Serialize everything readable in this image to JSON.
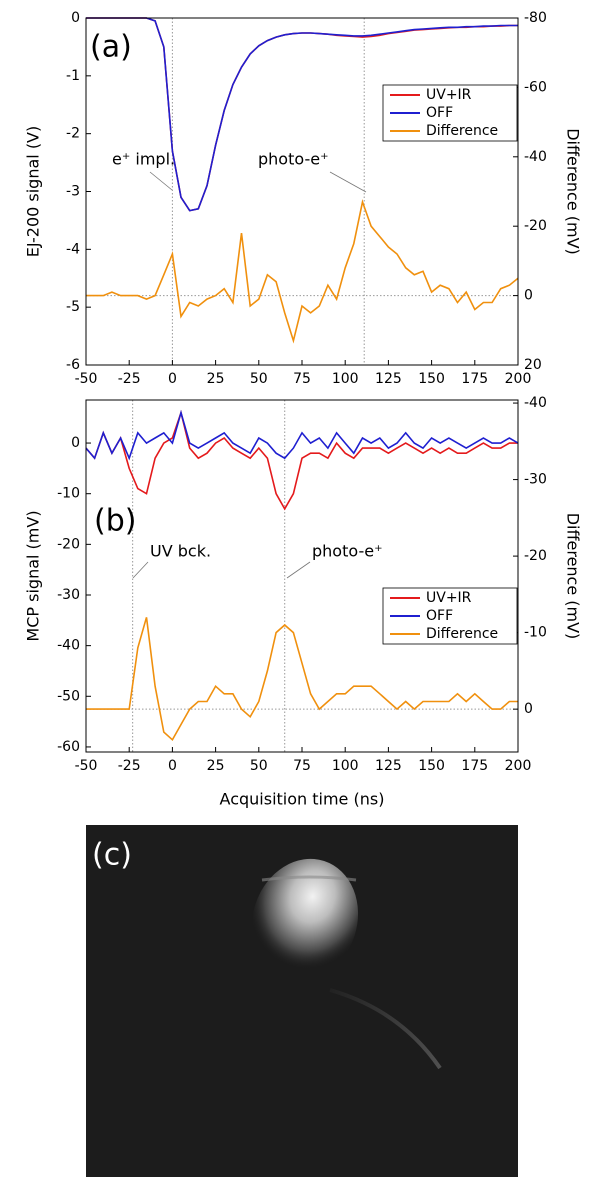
{
  "chart_data": [
    {
      "type": "line",
      "ylabel": "EJ-200 signal (V)",
      "y2label": "Difference (mV)",
      "legend": "upper right",
      "annotations": [
        {
          "text": "(a)"
        },
        {
          "text": "e⁺ impl."
        },
        {
          "text": "photo-e⁺"
        }
      ],
      "markers_x": [
        0,
        111
      ],
      "hline_y2": 0,
      "xlim": [
        -50,
        200
      ],
      "xticks": [
        -50,
        -25,
        0,
        25,
        50,
        75,
        100,
        125,
        150,
        175,
        200
      ],
      "ylim": [
        -6,
        0
      ],
      "yticks": [
        -6,
        -5,
        -4,
        -3,
        -2,
        -1,
        0
      ],
      "y2lim": [
        20,
        -80
      ],
      "y2ticks": [
        20,
        0,
        -20,
        -40,
        -60,
        -80
      ],
      "x": [
        -50,
        -45,
        -40,
        -35,
        -30,
        -25,
        -20,
        -15,
        -10,
        -5,
        0,
        5,
        10,
        15,
        20,
        25,
        30,
        35,
        40,
        45,
        50,
        55,
        60,
        65,
        70,
        75,
        80,
        85,
        90,
        95,
        100,
        105,
        110,
        115,
        120,
        125,
        130,
        135,
        140,
        145,
        150,
        155,
        160,
        165,
        170,
        175,
        180,
        185,
        190,
        195,
        200
      ],
      "series": [
        {
          "name": "UV+IR",
          "color": "#e41a1c",
          "values": [
            0,
            0,
            0,
            0,
            0,
            0,
            0,
            0,
            -0.05,
            -0.5,
            -2.3,
            -3.1,
            -3.33,
            -3.3,
            -2.9,
            -2.2,
            -1.6,
            -1.15,
            -0.85,
            -0.62,
            -0.48,
            -0.39,
            -0.33,
            -0.29,
            -0.27,
            -0.26,
            -0.26,
            -0.27,
            -0.28,
            -0.3,
            -0.31,
            -0.32,
            -0.33,
            -0.32,
            -0.3,
            -0.27,
            -0.25,
            -0.23,
            -0.21,
            -0.2,
            -0.19,
            -0.18,
            -0.17,
            -0.16,
            -0.16,
            -0.15,
            -0.15,
            -0.14,
            -0.14,
            -0.13,
            -0.13
          ]
        },
        {
          "name": "OFF",
          "color": "#1f1fd0",
          "values": [
            0,
            0,
            0,
            0,
            0,
            0,
            0,
            0,
            -0.05,
            -0.5,
            -2.3,
            -3.1,
            -3.33,
            -3.3,
            -2.9,
            -2.2,
            -1.6,
            -1.15,
            -0.85,
            -0.62,
            -0.48,
            -0.39,
            -0.33,
            -0.29,
            -0.27,
            -0.26,
            -0.26,
            -0.27,
            -0.28,
            -0.29,
            -0.3,
            -0.31,
            -0.31,
            -0.3,
            -0.28,
            -0.26,
            -0.24,
            -0.22,
            -0.2,
            -0.19,
            -0.18,
            -0.17,
            -0.16,
            -0.16,
            -0.15,
            -0.15,
            -0.14,
            -0.14,
            -0.13,
            -0.13,
            -0.13
          ]
        },
        {
          "name": "Difference",
          "color": "#f0900e",
          "axis": "y2",
          "values": [
            0,
            0,
            0,
            -1,
            0,
            0,
            0,
            1,
            0,
            -6,
            -12,
            6,
            2,
            3,
            1,
            0,
            -2,
            2,
            -18,
            3,
            1,
            -6,
            -4,
            5,
            13,
            3,
            5,
            3,
            -3,
            1,
            -8,
            -15,
            -27,
            -20,
            -17,
            -14,
            -12,
            -8,
            -6,
            -7,
            -1,
            -3,
            -2,
            2,
            -1,
            4,
            2,
            2,
            -2,
            -3,
            -5
          ]
        }
      ]
    },
    {
      "type": "line",
      "ylabel": "MCP signal (mV)",
      "y2label": "Difference (mV)",
      "xlabel": "Acquisition time (ns)",
      "legend": "lower right",
      "annotations": [
        {
          "text": "(b)"
        },
        {
          "text": "UV bck."
        },
        {
          "text": "photo-e⁺"
        }
      ],
      "markers_x": [
        -23,
        65
      ],
      "hline_y2": 0,
      "xlim": [
        -50,
        200
      ],
      "xticks": [
        -50,
        -25,
        0,
        25,
        50,
        75,
        100,
        125,
        150,
        175,
        200
      ],
      "ylim": [
        -61,
        8.5
      ],
      "yticks": [
        -60,
        -50,
        -40,
        -30,
        -20,
        -10,
        0
      ],
      "y2lim": [
        5.6,
        -40.4
      ],
      "y2ticks": [
        0,
        -10,
        -20,
        -30,
        -40
      ],
      "x": [
        -50,
        -45,
        -40,
        -35,
        -30,
        -25,
        -20,
        -15,
        -10,
        -5,
        0,
        5,
        10,
        15,
        20,
        25,
        30,
        35,
        40,
        45,
        50,
        55,
        60,
        65,
        70,
        75,
        80,
        85,
        90,
        95,
        100,
        105,
        110,
        115,
        120,
        125,
        130,
        135,
        140,
        145,
        150,
        155,
        160,
        165,
        170,
        175,
        180,
        185,
        190,
        195,
        200
      ],
      "series": [
        {
          "name": "UV+IR",
          "color": "#e41a1c",
          "values": [
            -1,
            -3,
            2,
            -2,
            1,
            -5,
            -9,
            -10,
            -3,
            0,
            1,
            6,
            -1,
            -3,
            -2,
            0,
            1,
            -1,
            -2,
            -3,
            -1,
            -3,
            -10,
            -13,
            -10,
            -3,
            -2,
            -2,
            -3,
            0,
            -2,
            -3,
            -1,
            -1,
            -1,
            -2,
            -1,
            0,
            -1,
            -2,
            -1,
            -2,
            -1,
            -2,
            -2,
            -1,
            0,
            -1,
            -1,
            0,
            0
          ]
        },
        {
          "name": "OFF",
          "color": "#1f1fd0",
          "values": [
            -1,
            -3,
            2,
            -2,
            1,
            -3,
            2,
            0,
            1,
            2,
            0,
            6,
            0,
            -1,
            0,
            1,
            2,
            0,
            -1,
            -2,
            1,
            0,
            -2,
            -3,
            -1,
            2,
            0,
            1,
            -1,
            2,
            0,
            -2,
            1,
            0,
            1,
            -1,
            0,
            2,
            0,
            -1,
            1,
            0,
            1,
            0,
            -1,
            0,
            1,
            0,
            0,
            1,
            0
          ]
        },
        {
          "name": "Difference",
          "color": "#f0900e",
          "axis": "y2",
          "values": [
            0,
            0,
            0,
            0,
            0,
            0,
            -8,
            -12,
            -3,
            3,
            4,
            2,
            0,
            -1,
            -1,
            -3,
            -2,
            -2,
            0,
            1,
            -1,
            -5,
            -10,
            -11,
            -10,
            -6,
            -2,
            0,
            -1,
            -2,
            -2,
            -3,
            -3,
            -3,
            -2,
            -1,
            0,
            -1,
            0,
            -1,
            -1,
            -1,
            -1,
            -2,
            -1,
            -2,
            -1,
            0,
            0,
            -1,
            -1
          ]
        }
      ]
    }
  ],
  "panel_c": {
    "label": "(c)"
  }
}
